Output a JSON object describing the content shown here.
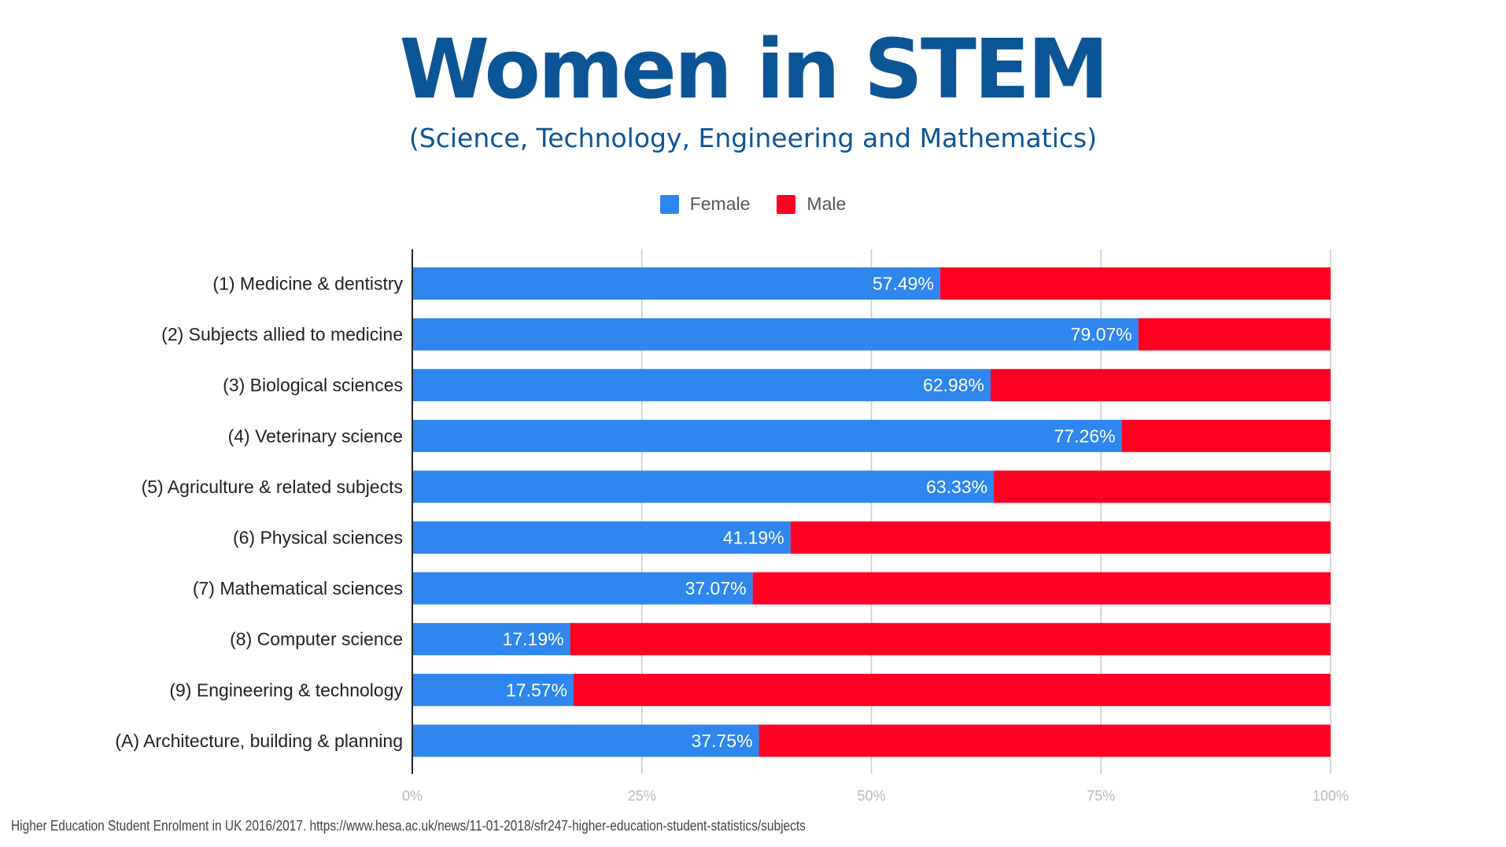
{
  "title": "Women in STEM",
  "subtitle": "(Science, Technology, Engineering and Mathematics)",
  "source": "Higher Education Student Enrolment in UK 2016/2017. https://www.hesa.ac.uk/news/11-01-2018/sfr247-higher-education-student-statistics/subjects",
  "chart_data": {
    "type": "bar",
    "orientation": "horizontal",
    "stacked": "percent",
    "categories": [
      "(1) Medicine & dentistry",
      "(2) Subjects allied to medicine",
      "(3) Biological sciences",
      "(4) Veterinary science",
      "(5) Agriculture & related subjects",
      "(6) Physical sciences",
      "(7) Mathematical sciences",
      "(8) Computer science",
      "(9) Engineering & technology",
      "(A) Architecture, building & planning"
    ],
    "series": [
      {
        "name": "Female",
        "color": "#2e86ee",
        "values": [
          57.49,
          79.07,
          62.98,
          77.26,
          63.33,
          41.19,
          37.07,
          17.19,
          17.57,
          37.75
        ]
      },
      {
        "name": "Male",
        "color": "#ff0022",
        "values": [
          42.51,
          20.93,
          37.02,
          22.74,
          36.67,
          58.81,
          62.93,
          82.81,
          82.43,
          62.25
        ]
      }
    ],
    "data_labels": [
      "57.49%",
      "79.07%",
      "62.98%",
      "77.26%",
      "63.33%",
      "41.19%",
      "37.07%",
      "17.19%",
      "17.57%",
      "37.75%"
    ],
    "xlim": [
      0,
      100
    ],
    "xticks": [
      "0%",
      "25%",
      "50%",
      "75%",
      "100%"
    ],
    "grid": true,
    "legend": "top"
  }
}
